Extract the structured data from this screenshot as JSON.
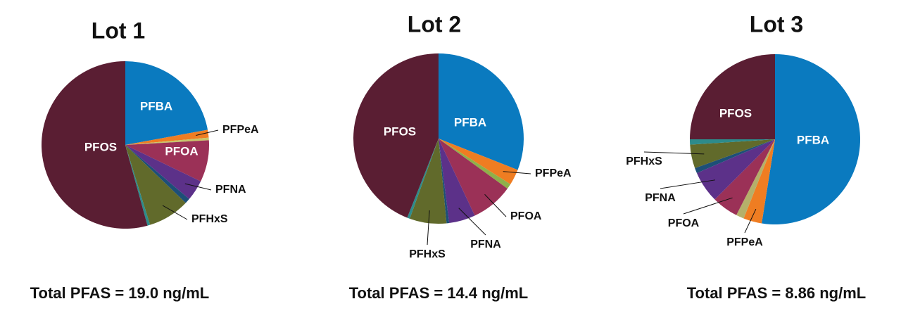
{
  "chart_data": [
    {
      "type": "pie",
      "title": "Lot 1",
      "annotation": "Total PFAS = 19.0 ng/mL",
      "categories": [
        "PFBA",
        "PFPeA",
        null,
        "PFOA",
        "PFNA",
        null,
        "PFHxS",
        null,
        "PFOS"
      ],
      "values": [
        22,
        1.5,
        0.5,
        8,
        4,
        1,
        8,
        0.5,
        54
      ],
      "colors": [
        "#0a7abf",
        "#ef7d22",
        "#c8c46a",
        "#9b3157",
        "#5c3189",
        "#1d4f77",
        "#616a2b",
        "#2d8b8b",
        "#5a1e33"
      ]
    },
    {
      "type": "pie",
      "title": "Lot 2",
      "annotation": "Total PFAS = 14.4 ng/mL",
      "categories": [
        "PFBA",
        "PFPeA",
        null,
        "PFOA",
        "PFNA",
        null,
        "PFHxS",
        null,
        "PFOS"
      ],
      "values": [
        31,
        3,
        1,
        8,
        5,
        0.5,
        7,
        0.5,
        44
      ],
      "colors": [
        "#0a7abf",
        "#ef7d22",
        "#8fb04a",
        "#9b3157",
        "#5c3189",
        "#1d4f77",
        "#616a2b",
        "#2d8b8b",
        "#5a1e33"
      ]
    },
    {
      "type": "pie",
      "title": "Lot 3",
      "annotation": "Total PFAS = 8.86 ng/mL",
      "categories": [
        "PFBA",
        "PFPeA",
        null,
        "PFOA",
        "PFNA",
        null,
        "PFHxS",
        null,
        "PFOS"
      ],
      "values": [
        52.5,
        3.5,
        1.5,
        5,
        6,
        1,
        4.5,
        1,
        25
      ],
      "colors": [
        "#0a7abf",
        "#ef7d22",
        "#b5b06a",
        "#9b3157",
        "#5c3189",
        "#1d4f77",
        "#616a2b",
        "#2d8b8b",
        "#5a1e33"
      ]
    }
  ]
}
